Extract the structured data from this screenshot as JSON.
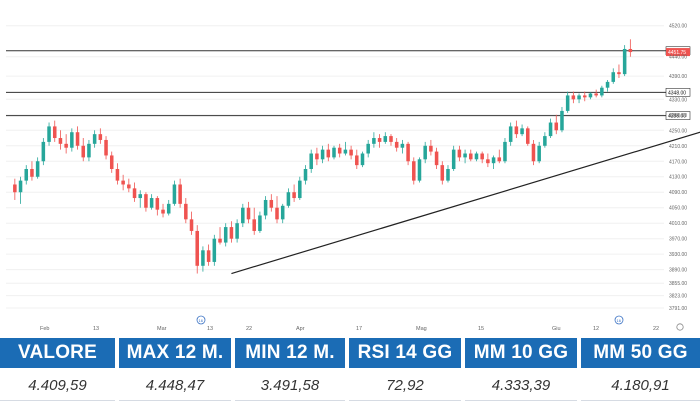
{
  "chart_data": {
    "type": "candlestick",
    "title": "",
    "xlabel": "",
    "ylabel": "",
    "ylim": [
      3760,
      4540
    ],
    "y_ticks": [
      "4520.00",
      "4440.00",
      "4390.00",
      "4330.00",
      "4290.00",
      "4250.00",
      "4210.00",
      "4170.00",
      "4130.00",
      "4090.00",
      "4050.00",
      "4010.00",
      "3970.00",
      "3930.00",
      "3890.00",
      "3855.00",
      "3823.00",
      "3791.00"
    ],
    "x_ticks": [
      "Feb",
      "13",
      "Mar",
      "13",
      "22",
      "Apr",
      "17",
      "Mag",
      "15",
      "Giu",
      "12",
      "22"
    ],
    "x_event_markers": [
      "16",
      "16"
    ],
    "horizontal_levels": [
      4455.5,
      4348.0,
      4288.0
    ],
    "level_labels": [
      "4455.50",
      "4348.00",
      "4288.00"
    ],
    "last_price_label": "4451.75",
    "trendline": {
      "from_index": 38,
      "from_value": 3880,
      "to_index": 127,
      "to_value": 4275
    },
    "colors": {
      "up": "#26a69a",
      "down": "#ef5350",
      "level": "#333333",
      "trend": "#222222",
      "price_tag": "#ef5350"
    },
    "candles": [
      {
        "o": 4110,
        "h": 4125,
        "l": 4070,
        "c": 4090
      },
      {
        "o": 4090,
        "h": 4130,
        "l": 4060,
        "c": 4120
      },
      {
        "o": 4120,
        "h": 4160,
        "l": 4110,
        "c": 4150
      },
      {
        "o": 4150,
        "h": 4170,
        "l": 4120,
        "c": 4130
      },
      {
        "o": 4130,
        "h": 4180,
        "l": 4125,
        "c": 4170
      },
      {
        "o": 4170,
        "h": 4230,
        "l": 4160,
        "c": 4220
      },
      {
        "o": 4220,
        "h": 4270,
        "l": 4210,
        "c": 4260
      },
      {
        "o": 4260,
        "h": 4275,
        "l": 4220,
        "c": 4230
      },
      {
        "o": 4230,
        "h": 4250,
        "l": 4200,
        "c": 4215
      },
      {
        "o": 4215,
        "h": 4240,
        "l": 4190,
        "c": 4205
      },
      {
        "o": 4205,
        "h": 4255,
        "l": 4195,
        "c": 4245
      },
      {
        "o": 4245,
        "h": 4260,
        "l": 4200,
        "c": 4210
      },
      {
        "o": 4210,
        "h": 4230,
        "l": 4170,
        "c": 4180
      },
      {
        "o": 4180,
        "h": 4225,
        "l": 4170,
        "c": 4215
      },
      {
        "o": 4215,
        "h": 4250,
        "l": 4205,
        "c": 4240
      },
      {
        "o": 4240,
        "h": 4255,
        "l": 4215,
        "c": 4225
      },
      {
        "o": 4225,
        "h": 4235,
        "l": 4175,
        "c": 4185
      },
      {
        "o": 4185,
        "h": 4195,
        "l": 4140,
        "c": 4150
      },
      {
        "o": 4150,
        "h": 4165,
        "l": 4110,
        "c": 4120
      },
      {
        "o": 4120,
        "h": 4135,
        "l": 4095,
        "c": 4110
      },
      {
        "o": 4110,
        "h": 4125,
        "l": 4090,
        "c": 4100
      },
      {
        "o": 4100,
        "h": 4115,
        "l": 4065,
        "c": 4075
      },
      {
        "o": 4075,
        "h": 4095,
        "l": 4050,
        "c": 4085
      },
      {
        "o": 4085,
        "h": 4090,
        "l": 4040,
        "c": 4050
      },
      {
        "o": 4050,
        "h": 4085,
        "l": 4045,
        "c": 4075
      },
      {
        "o": 4075,
        "h": 4080,
        "l": 4030,
        "c": 4045
      },
      {
        "o": 4045,
        "h": 4060,
        "l": 4025,
        "c": 4035
      },
      {
        "o": 4035,
        "h": 4070,
        "l": 4030,
        "c": 4060
      },
      {
        "o": 4060,
        "h": 4120,
        "l": 4055,
        "c": 4110
      },
      {
        "o": 4110,
        "h": 4125,
        "l": 4050,
        "c": 4060
      },
      {
        "o": 4060,
        "h": 4075,
        "l": 4010,
        "c": 4020
      },
      {
        "o": 4020,
        "h": 4040,
        "l": 3980,
        "c": 3990
      },
      {
        "o": 3990,
        "h": 4005,
        "l": 3880,
        "c": 3900
      },
      {
        "o": 3900,
        "h": 3950,
        "l": 3885,
        "c": 3940
      },
      {
        "o": 3940,
        "h": 3955,
        "l": 3900,
        "c": 3910
      },
      {
        "o": 3910,
        "h": 3980,
        "l": 3900,
        "c": 3970
      },
      {
        "o": 3970,
        "h": 4000,
        "l": 3955,
        "c": 3960
      },
      {
        "o": 3960,
        "h": 4010,
        "l": 3950,
        "c": 4000
      },
      {
        "o": 4000,
        "h": 4015,
        "l": 3960,
        "c": 3970
      },
      {
        "o": 3970,
        "h": 4020,
        "l": 3960,
        "c": 4010
      },
      {
        "o": 4010,
        "h": 4060,
        "l": 4000,
        "c": 4050
      },
      {
        "o": 4050,
        "h": 4065,
        "l": 4010,
        "c": 4020
      },
      {
        "o": 4020,
        "h": 4050,
        "l": 3980,
        "c": 3990
      },
      {
        "o": 3990,
        "h": 4040,
        "l": 3985,
        "c": 4030
      },
      {
        "o": 4030,
        "h": 4080,
        "l": 4020,
        "c": 4070
      },
      {
        "o": 4070,
        "h": 4085,
        "l": 4040,
        "c": 4050
      },
      {
        "o": 4050,
        "h": 4080,
        "l": 4010,
        "c": 4020
      },
      {
        "o": 4020,
        "h": 4060,
        "l": 4010,
        "c": 4055
      },
      {
        "o": 4055,
        "h": 4100,
        "l": 4050,
        "c": 4090
      },
      {
        "o": 4090,
        "h": 4110,
        "l": 4065,
        "c": 4075
      },
      {
        "o": 4075,
        "h": 4130,
        "l": 4070,
        "c": 4120
      },
      {
        "o": 4120,
        "h": 4160,
        "l": 4110,
        "c": 4150
      },
      {
        "o": 4150,
        "h": 4200,
        "l": 4140,
        "c": 4190
      },
      {
        "o": 4190,
        "h": 4205,
        "l": 4160,
        "c": 4175
      },
      {
        "o": 4175,
        "h": 4210,
        "l": 4165,
        "c": 4200
      },
      {
        "o": 4200,
        "h": 4215,
        "l": 4170,
        "c": 4180
      },
      {
        "o": 4180,
        "h": 4210,
        "l": 4175,
        "c": 4205
      },
      {
        "o": 4205,
        "h": 4215,
        "l": 4180,
        "c": 4190
      },
      {
        "o": 4190,
        "h": 4220,
        "l": 4185,
        "c": 4200
      },
      {
        "o": 4200,
        "h": 4210,
        "l": 4175,
        "c": 4185
      },
      {
        "o": 4185,
        "h": 4200,
        "l": 4150,
        "c": 4160
      },
      {
        "o": 4160,
        "h": 4195,
        "l": 4155,
        "c": 4190
      },
      {
        "o": 4190,
        "h": 4225,
        "l": 4180,
        "c": 4215
      },
      {
        "o": 4215,
        "h": 4245,
        "l": 4205,
        "c": 4230
      },
      {
        "o": 4230,
        "h": 4240,
        "l": 4205,
        "c": 4220
      },
      {
        "o": 4220,
        "h": 4245,
        "l": 4215,
        "c": 4235
      },
      {
        "o": 4235,
        "h": 4240,
        "l": 4210,
        "c": 4220
      },
      {
        "o": 4220,
        "h": 4230,
        "l": 4195,
        "c": 4205
      },
      {
        "o": 4205,
        "h": 4225,
        "l": 4190,
        "c": 4215
      },
      {
        "o": 4215,
        "h": 4220,
        "l": 4160,
        "c": 4170
      },
      {
        "o": 4170,
        "h": 4180,
        "l": 4110,
        "c": 4120
      },
      {
        "o": 4120,
        "h": 4180,
        "l": 4115,
        "c": 4175
      },
      {
        "o": 4175,
        "h": 4220,
        "l": 4165,
        "c": 4210
      },
      {
        "o": 4210,
        "h": 4225,
        "l": 4185,
        "c": 4195
      },
      {
        "o": 4195,
        "h": 4205,
        "l": 4150,
        "c": 4160
      },
      {
        "o": 4160,
        "h": 4170,
        "l": 4110,
        "c": 4120
      },
      {
        "o": 4120,
        "h": 4160,
        "l": 4115,
        "c": 4150
      },
      {
        "o": 4150,
        "h": 4210,
        "l": 4145,
        "c": 4200
      },
      {
        "o": 4200,
        "h": 4210,
        "l": 4170,
        "c": 4180
      },
      {
        "o": 4180,
        "h": 4200,
        "l": 4165,
        "c": 4190
      },
      {
        "o": 4190,
        "h": 4200,
        "l": 4170,
        "c": 4175
      },
      {
        "o": 4175,
        "h": 4195,
        "l": 4170,
        "c": 4190
      },
      {
        "o": 4190,
        "h": 4195,
        "l": 4165,
        "c": 4175
      },
      {
        "o": 4175,
        "h": 4190,
        "l": 4155,
        "c": 4165
      },
      {
        "o": 4165,
        "h": 4185,
        "l": 4150,
        "c": 4180
      },
      {
        "o": 4180,
        "h": 4200,
        "l": 4165,
        "c": 4170
      },
      {
        "o": 4170,
        "h": 4230,
        "l": 4165,
        "c": 4220
      },
      {
        "o": 4220,
        "h": 4270,
        "l": 4210,
        "c": 4260
      },
      {
        "o": 4260,
        "h": 4275,
        "l": 4230,
        "c": 4240
      },
      {
        "o": 4240,
        "h": 4265,
        "l": 4235,
        "c": 4255
      },
      {
        "o": 4255,
        "h": 4260,
        "l": 4210,
        "c": 4215
      },
      {
        "o": 4215,
        "h": 4225,
        "l": 4160,
        "c": 4170
      },
      {
        "o": 4170,
        "h": 4220,
        "l": 4165,
        "c": 4210
      },
      {
        "o": 4210,
        "h": 4245,
        "l": 4205,
        "c": 4235
      },
      {
        "o": 4235,
        "h": 4280,
        "l": 4230,
        "c": 4270
      },
      {
        "o": 4270,
        "h": 4290,
        "l": 4240,
        "c": 4250
      },
      {
        "o": 4250,
        "h": 4310,
        "l": 4245,
        "c": 4300
      },
      {
        "o": 4300,
        "h": 4350,
        "l": 4295,
        "c": 4340
      },
      {
        "o": 4340,
        "h": 4350,
        "l": 4320,
        "c": 4330
      },
      {
        "o": 4330,
        "h": 4345,
        "l": 4320,
        "c": 4340
      },
      {
        "o": 4340,
        "h": 4350,
        "l": 4325,
        "c": 4335
      },
      {
        "o": 4335,
        "h": 4348,
        "l": 4330,
        "c": 4345
      },
      {
        "o": 4345,
        "h": 4355,
        "l": 4335,
        "c": 4340
      },
      {
        "o": 4340,
        "h": 4365,
        "l": 4335,
        "c": 4360
      },
      {
        "o": 4360,
        "h": 4380,
        "l": 4350,
        "c": 4375
      },
      {
        "o": 4375,
        "h": 4410,
        "l": 4370,
        "c": 4400
      },
      {
        "o": 4400,
        "h": 4420,
        "l": 4385,
        "c": 4395
      },
      {
        "o": 4395,
        "h": 4470,
        "l": 4390,
        "c": 4460
      },
      {
        "o": 4460,
        "h": 4485,
        "l": 4440,
        "c": 4452
      }
    ]
  },
  "stats": {
    "headers": [
      "VALORE",
      "MAX 12 M.",
      "MIN 12 M.",
      "RSI 14 GG",
      "MM 10 GG",
      "MM 50 GG"
    ],
    "values": [
      "4.409,59",
      "4.448,47",
      "3.491,58",
      "72,92",
      "4.333,39",
      "4.180,91"
    ]
  }
}
